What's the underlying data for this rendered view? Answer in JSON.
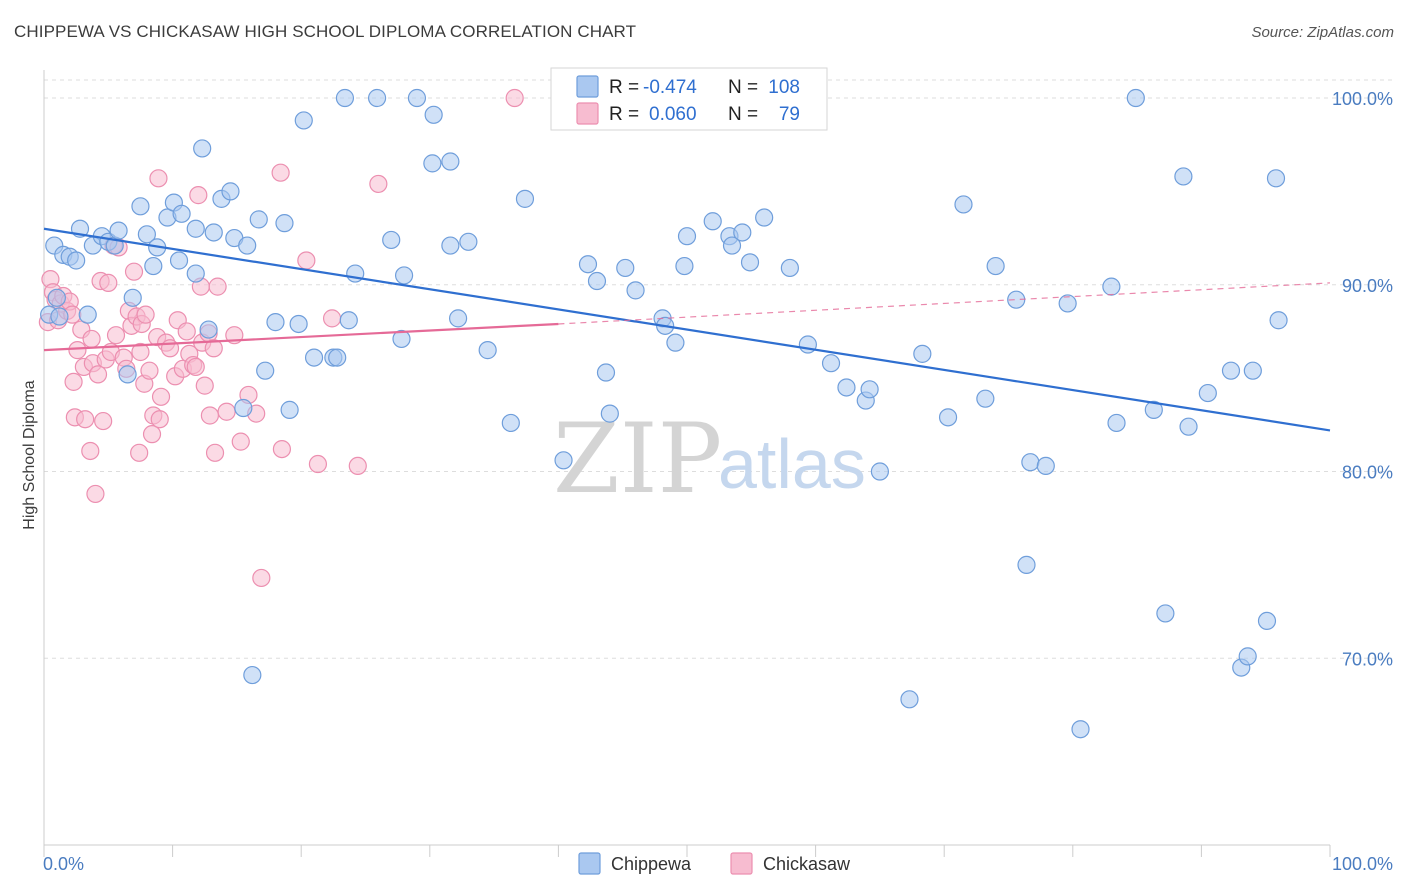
{
  "header": {
    "title": "CHIPPEWA VS CHICKASAW HIGH SCHOOL DIPLOMA CORRELATION CHART",
    "source": "Source: ZipAtlas.com"
  },
  "watermark": {
    "zip": "ZIP",
    "atlas": "atlas"
  },
  "legend": {
    "r_label": "R =",
    "n_label": "N =",
    "rows": [
      {
        "r": "-0.474",
        "n": "108"
      },
      {
        "r": "0.060",
        "n": "79"
      }
    ]
  },
  "colors": {
    "chippewa_fill": "#aac8f0",
    "chippewa_stroke": "#6f9edb",
    "chippewa_line": "#2f6fd0",
    "chickasaw_fill": "#f7bcd0",
    "chickasaw_stroke": "#ec8fb0",
    "chickasaw_line": "#e56a97",
    "value_text": "#2f6fd0",
    "label_text": "#222222",
    "grid": "#dddddd"
  },
  "chart_data": {
    "type": "scatter",
    "title": "CHIPPEWA VS CHICKASAW HIGH SCHOOL DIPLOMA CORRELATION CHART",
    "xlabel": "",
    "ylabel": "High School Diploma",
    "xlim": [
      0,
      100
    ],
    "ylim": [
      60,
      101.5
    ],
    "x_tick_labels": [
      "0.0%",
      "100.0%"
    ],
    "y_ticks": [
      70,
      80,
      90,
      100
    ],
    "y_tick_labels": [
      "70.0%",
      "80.0%",
      "90.0%",
      "100.0%"
    ],
    "grid": true,
    "legend_position": "top-center",
    "series": [
      {
        "name": "Chippewa",
        "points": [
          [
            0.4,
            88.4
          ],
          [
            0.8,
            92.1
          ],
          [
            1.0,
            89.3
          ],
          [
            1.2,
            88.3
          ],
          [
            1.5,
            91.6
          ],
          [
            2.0,
            91.5
          ],
          [
            2.5,
            91.3
          ],
          [
            2.8,
            93.0
          ],
          [
            3.4,
            88.4
          ],
          [
            3.8,
            92.1
          ],
          [
            4.5,
            92.6
          ],
          [
            5.0,
            92.3
          ],
          [
            5.5,
            92.1
          ],
          [
            5.8,
            92.9
          ],
          [
            6.5,
            85.2
          ],
          [
            6.9,
            89.3
          ],
          [
            7.5,
            94.2
          ],
          [
            8.0,
            92.7
          ],
          [
            8.5,
            91.0
          ],
          [
            8.8,
            92.0
          ],
          [
            9.6,
            93.6
          ],
          [
            10.1,
            94.4
          ],
          [
            10.5,
            91.3
          ],
          [
            10.7,
            93.8
          ],
          [
            11.8,
            93.0
          ],
          [
            11.8,
            90.6
          ],
          [
            12.3,
            97.3
          ],
          [
            12.8,
            87.6
          ],
          [
            13.2,
            92.8
          ],
          [
            13.8,
            94.6
          ],
          [
            14.5,
            95.0
          ],
          [
            14.8,
            92.5
          ],
          [
            15.5,
            83.4
          ],
          [
            15.8,
            92.1
          ],
          [
            16.2,
            69.1
          ],
          [
            16.7,
            93.5
          ],
          [
            17.2,
            85.4
          ],
          [
            18.0,
            88.0
          ],
          [
            18.7,
            93.3
          ],
          [
            19.1,
            83.3
          ],
          [
            19.8,
            87.9
          ],
          [
            20.2,
            98.8
          ],
          [
            21.0,
            86.1
          ],
          [
            22.5,
            86.1
          ],
          [
            22.8,
            86.1
          ],
          [
            23.4,
            100.0
          ],
          [
            23.7,
            88.1
          ],
          [
            24.2,
            90.6
          ],
          [
            25.9,
            100.0
          ],
          [
            27.0,
            92.4
          ],
          [
            27.8,
            87.1
          ],
          [
            28.0,
            90.5
          ],
          [
            29.0,
            100.0
          ],
          [
            30.2,
            96.5
          ],
          [
            30.3,
            99.1
          ],
          [
            31.6,
            92.1
          ],
          [
            31.6,
            96.6
          ],
          [
            32.2,
            88.2
          ],
          [
            33.0,
            92.3
          ],
          [
            34.5,
            86.5
          ],
          [
            36.3,
            82.6
          ],
          [
            37.4,
            94.6
          ],
          [
            40.4,
            80.6
          ],
          [
            42.3,
            91.1
          ],
          [
            43.0,
            90.2
          ],
          [
            43.7,
            85.3
          ],
          [
            44.0,
            83.1
          ],
          [
            45.2,
            90.9
          ],
          [
            46.0,
            89.7
          ],
          [
            48.1,
            88.2
          ],
          [
            49.1,
            86.9
          ],
          [
            49.8,
            91.0
          ],
          [
            50.0,
            92.6
          ],
          [
            52.0,
            93.4
          ],
          [
            53.3,
            92.6
          ],
          [
            53.5,
            92.1
          ],
          [
            54.9,
            91.2
          ],
          [
            56.0,
            93.6
          ],
          [
            58.0,
            90.9
          ],
          [
            59.4,
            86.8
          ],
          [
            61.2,
            85.8
          ],
          [
            62.4,
            84.5
          ],
          [
            63.9,
            83.8
          ],
          [
            64.2,
            84.4
          ],
          [
            65.0,
            80.0
          ],
          [
            67.3,
            67.8
          ],
          [
            68.3,
            86.3
          ],
          [
            70.3,
            82.9
          ],
          [
            71.5,
            94.3
          ],
          [
            73.2,
            83.9
          ],
          [
            74.0,
            91.0
          ],
          [
            75.6,
            89.2
          ],
          [
            76.4,
            75.0
          ],
          [
            76.7,
            80.5
          ],
          [
            77.9,
            80.3
          ],
          [
            79.6,
            89.0
          ],
          [
            80.6,
            66.2
          ],
          [
            83.0,
            89.9
          ],
          [
            83.4,
            82.6
          ],
          [
            84.9,
            100.0
          ],
          [
            86.3,
            83.3
          ],
          [
            87.2,
            72.4
          ],
          [
            88.6,
            95.8
          ],
          [
            89.0,
            82.4
          ],
          [
            90.5,
            84.2
          ],
          [
            92.3,
            85.4
          ],
          [
            93.1,
            69.5
          ],
          [
            93.6,
            70.1
          ],
          [
            94.0,
            85.4
          ],
          [
            95.1,
            72.0
          ],
          [
            95.8,
            95.7
          ],
          [
            96.0,
            88.1
          ],
          [
            48.3,
            87.8
          ],
          [
            54.3,
            92.8
          ]
        ],
        "trend": {
          "x": [
            0,
            100
          ],
          "y": [
            93.0,
            82.2
          ]
        }
      },
      {
        "name": "Chickasaw",
        "points": [
          [
            0.3,
            88.0
          ],
          [
            0.5,
            90.3
          ],
          [
            0.7,
            89.6
          ],
          [
            0.9,
            89.2
          ],
          [
            1.1,
            88.1
          ],
          [
            1.3,
            89.0
          ],
          [
            1.5,
            89.4
          ],
          [
            1.8,
            88.6
          ],
          [
            2.0,
            89.1
          ],
          [
            2.2,
            88.4
          ],
          [
            2.3,
            84.8
          ],
          [
            2.4,
            82.9
          ],
          [
            2.6,
            86.5
          ],
          [
            2.9,
            87.6
          ],
          [
            3.1,
            85.6
          ],
          [
            3.2,
            82.8
          ],
          [
            3.6,
            81.1
          ],
          [
            3.7,
            87.1
          ],
          [
            3.8,
            85.8
          ],
          [
            4.0,
            78.8
          ],
          [
            4.2,
            85.2
          ],
          [
            4.4,
            90.2
          ],
          [
            4.6,
            82.7
          ],
          [
            4.8,
            86.0
          ],
          [
            5.0,
            90.1
          ],
          [
            5.2,
            86.4
          ],
          [
            5.4,
            92.1
          ],
          [
            5.6,
            87.3
          ],
          [
            5.8,
            92.0
          ],
          [
            6.2,
            86.1
          ],
          [
            6.4,
            85.5
          ],
          [
            6.6,
            88.6
          ],
          [
            6.8,
            87.8
          ],
          [
            7.0,
            90.7
          ],
          [
            7.2,
            88.3
          ],
          [
            7.4,
            81.0
          ],
          [
            7.5,
            86.4
          ],
          [
            7.6,
            87.9
          ],
          [
            7.8,
            84.7
          ],
          [
            7.9,
            88.4
          ],
          [
            8.2,
            85.4
          ],
          [
            8.4,
            82.0
          ],
          [
            8.5,
            83.0
          ],
          [
            8.8,
            87.2
          ],
          [
            8.9,
            95.7
          ],
          [
            9.0,
            82.8
          ],
          [
            9.1,
            84.0
          ],
          [
            9.5,
            86.9
          ],
          [
            9.8,
            86.6
          ],
          [
            10.2,
            85.1
          ],
          [
            10.4,
            88.1
          ],
          [
            10.8,
            85.5
          ],
          [
            11.1,
            87.5
          ],
          [
            11.3,
            86.3
          ],
          [
            11.6,
            85.7
          ],
          [
            11.8,
            85.6
          ],
          [
            12.0,
            94.8
          ],
          [
            12.2,
            89.9
          ],
          [
            12.3,
            86.9
          ],
          [
            12.5,
            84.6
          ],
          [
            12.8,
            87.4
          ],
          [
            13.2,
            86.6
          ],
          [
            13.3,
            81.0
          ],
          [
            13.5,
            89.9
          ],
          [
            14.2,
            83.2
          ],
          [
            14.8,
            87.3
          ],
          [
            15.3,
            81.6
          ],
          [
            15.9,
            84.1
          ],
          [
            16.5,
            83.1
          ],
          [
            16.9,
            74.3
          ],
          [
            18.4,
            96.0
          ],
          [
            18.5,
            81.2
          ],
          [
            20.4,
            91.3
          ],
          [
            21.3,
            80.4
          ],
          [
            22.4,
            88.2
          ],
          [
            24.4,
            80.3
          ],
          [
            26.0,
            95.4
          ],
          [
            36.6,
            100.0
          ],
          [
            12.9,
            83.0
          ]
        ],
        "trend": {
          "x": [
            0,
            40
          ],
          "y": [
            86.5,
            87.9
          ]
        },
        "trend_extension": {
          "x": [
            40,
            100
          ],
          "y": [
            87.9,
            90.1
          ]
        }
      }
    ]
  },
  "bottom_legend": [
    {
      "label": "Chippewa"
    },
    {
      "label": "Chickasaw"
    }
  ]
}
